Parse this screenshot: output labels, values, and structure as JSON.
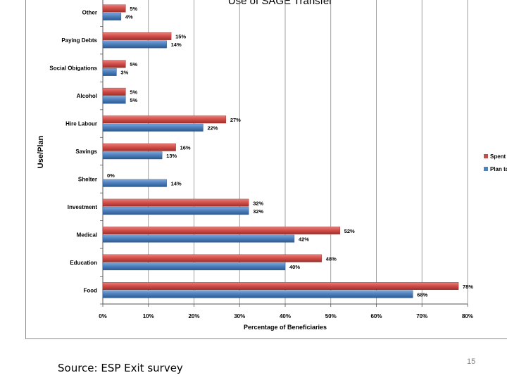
{
  "slide": {
    "source_note": "Source: ESP Exit survey",
    "page_number": "15"
  },
  "chart_data": {
    "type": "bar",
    "orientation": "horizontal",
    "title": "Use of SAGE Transfer",
    "xlabel": "Percentage of Beneficiaries",
    "ylabel": "Use/Plan",
    "categories": [
      "Other",
      "Paying Debts",
      "Social Obigations",
      "Alcohol",
      "Hire Labour",
      "Savings",
      "Shelter",
      "Investment",
      "Medical",
      "Education",
      "Food"
    ],
    "series": [
      {
        "name": "Spent",
        "color": "#c0504d",
        "values": [
          5,
          15,
          5,
          5,
          27,
          16,
          0,
          32,
          52,
          48,
          78
        ]
      },
      {
        "name": "Plan to",
        "color": "#4f81bd",
        "values": [
          4,
          14,
          3,
          5,
          22,
          13,
          14,
          32,
          42,
          40,
          68
        ]
      }
    ],
    "data_label_suffix": "%",
    "xlim": [
      0,
      80
    ],
    "xticks": [
      "0%",
      "10%",
      "20%",
      "30%",
      "40%",
      "50%",
      "60%",
      "70%",
      "80%"
    ],
    "grid": true,
    "legend_position": "right"
  }
}
